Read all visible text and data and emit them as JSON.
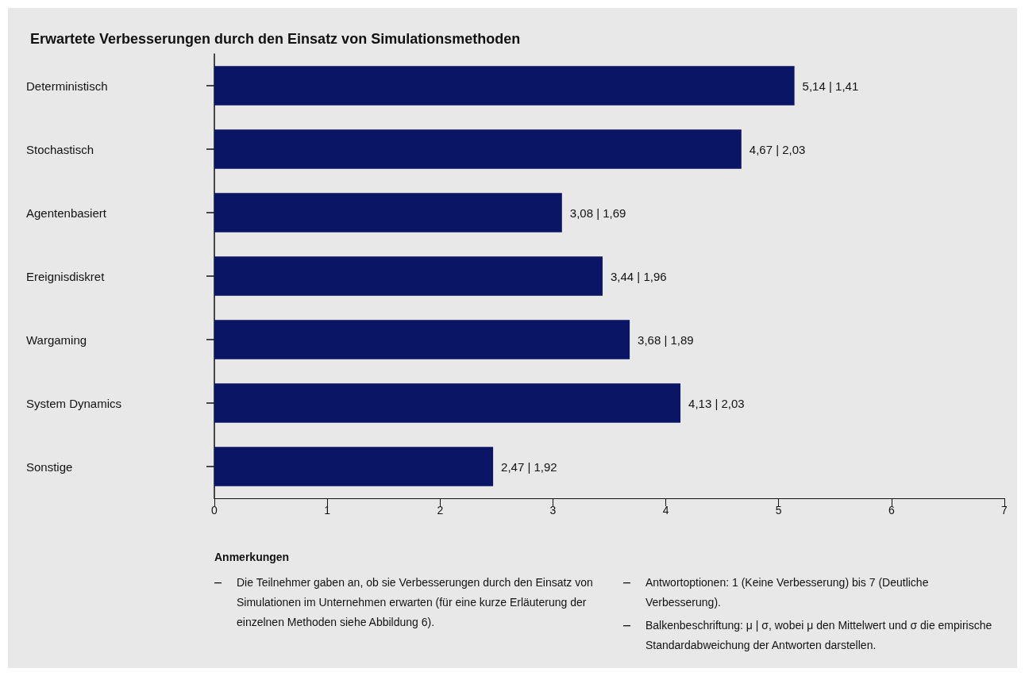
{
  "chart_data": {
    "type": "bar",
    "orientation": "horizontal",
    "title": "Erwartete Verbesserungen durch den Einsatz von Simulationsmethoden",
    "categories": [
      "Deterministisch",
      "Stochastisch",
      "Agentenbasiert",
      "Ereignisdiskret",
      "Wargaming",
      "System Dynamics",
      "Sonstige"
    ],
    "values": [
      5.14,
      4.67,
      3.08,
      3.44,
      3.68,
      4.13,
      2.47
    ],
    "value_labels": [
      "5,14 | 1,41",
      "4,67 | 2,03",
      "3,08 | 1,69",
      "3,44 | 1,96",
      "3,68 | 1,89",
      "4,13 | 2,03",
      "2,47 | 1,92"
    ],
    "color": "#0b1565",
    "xlim": [
      0,
      7
    ],
    "xticks": [
      0,
      1,
      2,
      3,
      4,
      5,
      6,
      7
    ],
    "grid": false,
    "annotations": [
      "Anmerkungen",
      "Die Teilnehmer gaben an, ob sie Verbesserungen durch den Einsatz von Simulationen im Unternehmen erwarten (für eine kurze Erläuterung der einzelnen Methoden siehe Abbildung 6).",
      "Antwortoptionen: 1 (Keine Verbesserung) bis 7 (Deutliche Verbesserung).",
      "Balkenbeschriftung: μ | σ, wobei μ den Mittelwert und σ die empirische Standardabweichung der Antworten darstellen."
    ]
  }
}
